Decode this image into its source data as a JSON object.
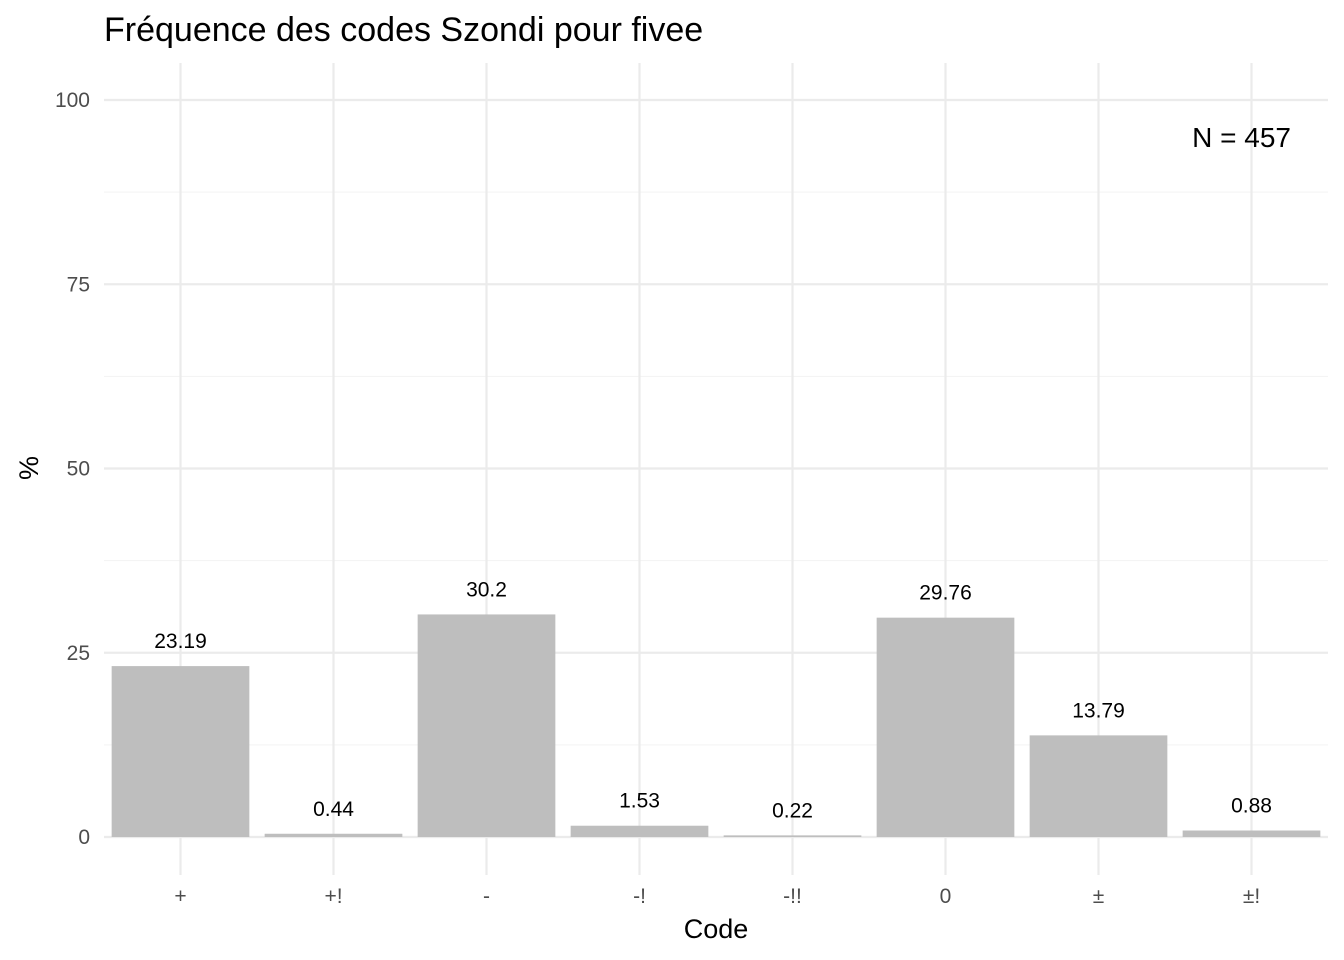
{
  "chart_data": {
    "type": "bar",
    "title": "Fréquence des codes Szondi pour fivee",
    "xlabel": "Code",
    "ylabel": "%",
    "categories": [
      "+",
      "+!",
      "-",
      "-!",
      "-!!",
      "0",
      "±",
      "±!"
    ],
    "values": [
      23.19,
      0.44,
      30.2,
      1.53,
      0.22,
      29.76,
      13.79,
      0.88
    ],
    "data_labels": [
      "23.19",
      "0.44",
      "30.2",
      "1.53",
      "0.22",
      "29.76",
      "13.79",
      "0.88"
    ],
    "ylim": [
      0,
      100
    ],
    "yticks": [
      0,
      25,
      50,
      75,
      100
    ],
    "ytick_labels": [
      "0",
      "25",
      "50",
      "75",
      "100"
    ],
    "grid": true,
    "bar_color": "#bebebe",
    "annotation": "N = 457",
    "annotation_position": "top-right"
  }
}
